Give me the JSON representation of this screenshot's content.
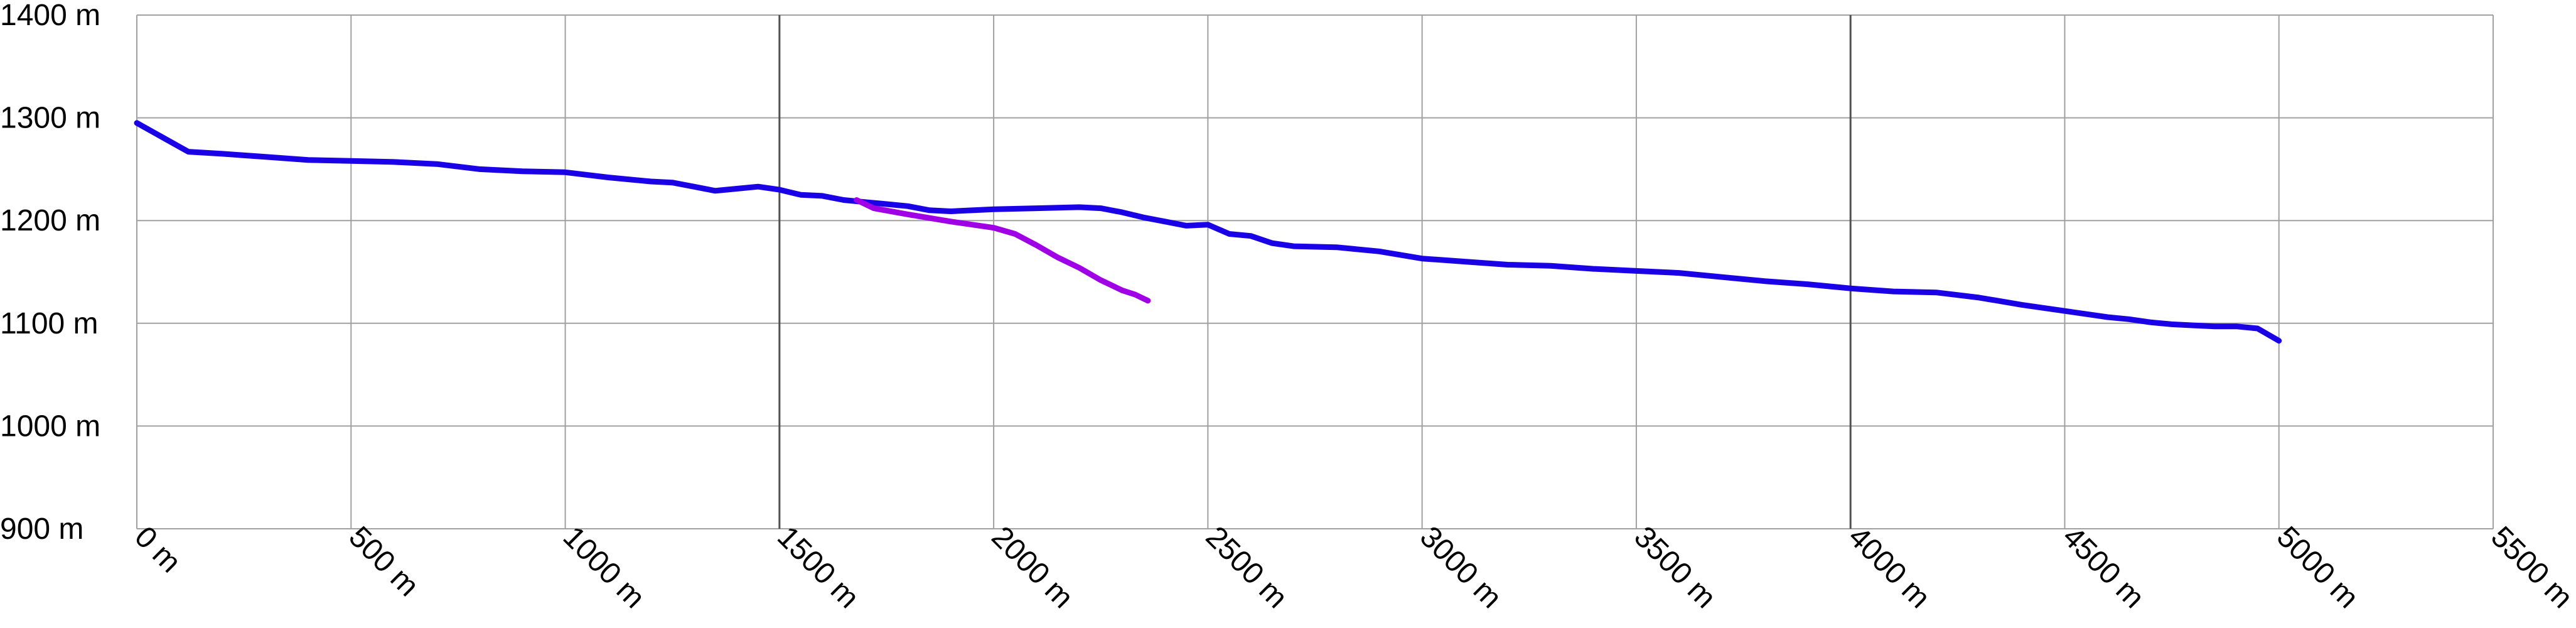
{
  "chart_data": {
    "type": "line",
    "title": "",
    "xlabel": "",
    "ylabel": "",
    "xlim": [
      0,
      5500
    ],
    "ylim": [
      900,
      1400
    ],
    "x_ticks": [
      0,
      500,
      1000,
      1500,
      2000,
      2500,
      3000,
      3500,
      4000,
      4500,
      5000,
      5500
    ],
    "y_ticks": [
      900,
      1000,
      1100,
      1200,
      1300,
      1400
    ],
    "x_tick_labels": [
      "0 m",
      "500 m",
      "1000 m",
      "1500 m",
      "2000 m",
      "2500 m",
      "3000 m",
      "3500 m",
      "4000 m",
      "4500 m",
      "5000 m",
      "5500 m"
    ],
    "y_tick_labels": [
      "900 m",
      "1000 m",
      "1100 m",
      "1200 m",
      "1300 m",
      "1400 m"
    ],
    "major_x_gridlines": [
      1500,
      4000
    ],
    "grid": true,
    "series": [
      {
        "color": "#1a00e6",
        "points": [
          [
            0,
            1295
          ],
          [
            120,
            1267
          ],
          [
            200,
            1265
          ],
          [
            300,
            1262
          ],
          [
            400,
            1259
          ],
          [
            500,
            1258
          ],
          [
            600,
            1257
          ],
          [
            700,
            1255
          ],
          [
            800,
            1250
          ],
          [
            900,
            1248
          ],
          [
            1000,
            1247
          ],
          [
            1100,
            1242
          ],
          [
            1200,
            1238
          ],
          [
            1250,
            1237
          ],
          [
            1300,
            1233
          ],
          [
            1350,
            1229
          ],
          [
            1400,
            1231
          ],
          [
            1450,
            1233
          ],
          [
            1500,
            1230
          ],
          [
            1550,
            1225
          ],
          [
            1600,
            1224
          ],
          [
            1650,
            1220
          ],
          [
            1700,
            1218
          ],
          [
            1750,
            1216
          ],
          [
            1800,
            1214
          ],
          [
            1850,
            1210
          ],
          [
            1900,
            1209
          ],
          [
            2000,
            1211
          ],
          [
            2100,
            1212
          ],
          [
            2200,
            1213
          ],
          [
            2250,
            1212
          ],
          [
            2300,
            1208
          ],
          [
            2350,
            1203
          ],
          [
            2400,
            1199
          ],
          [
            2450,
            1195
          ],
          [
            2500,
            1196
          ],
          [
            2550,
            1187
          ],
          [
            2600,
            1185
          ],
          [
            2650,
            1178
          ],
          [
            2700,
            1175
          ],
          [
            2800,
            1174
          ],
          [
            2900,
            1170
          ],
          [
            3000,
            1163
          ],
          [
            3100,
            1160
          ],
          [
            3200,
            1157
          ],
          [
            3300,
            1156
          ],
          [
            3400,
            1153
          ],
          [
            3500,
            1151
          ],
          [
            3600,
            1149
          ],
          [
            3700,
            1145
          ],
          [
            3800,
            1141
          ],
          [
            3900,
            1138
          ],
          [
            4000,
            1134
          ],
          [
            4100,
            1131
          ],
          [
            4200,
            1130
          ],
          [
            4300,
            1125
          ],
          [
            4400,
            1118
          ],
          [
            4500,
            1112
          ],
          [
            4600,
            1106
          ],
          [
            4650,
            1104
          ],
          [
            4700,
            1101
          ],
          [
            4750,
            1099
          ],
          [
            4800,
            1098
          ],
          [
            4850,
            1097
          ],
          [
            4900,
            1097
          ],
          [
            4950,
            1095
          ],
          [
            5000,
            1083
          ]
        ]
      },
      {
        "color": "#a000e6",
        "points": [
          [
            1680,
            1220
          ],
          [
            1720,
            1212
          ],
          [
            1800,
            1206
          ],
          [
            1900,
            1199
          ],
          [
            2000,
            1193
          ],
          [
            2050,
            1187
          ],
          [
            2100,
            1176
          ],
          [
            2150,
            1164
          ],
          [
            2200,
            1154
          ],
          [
            2250,
            1142
          ],
          [
            2300,
            1132
          ],
          [
            2330,
            1128
          ],
          [
            2360,
            1122
          ]
        ]
      }
    ]
  }
}
